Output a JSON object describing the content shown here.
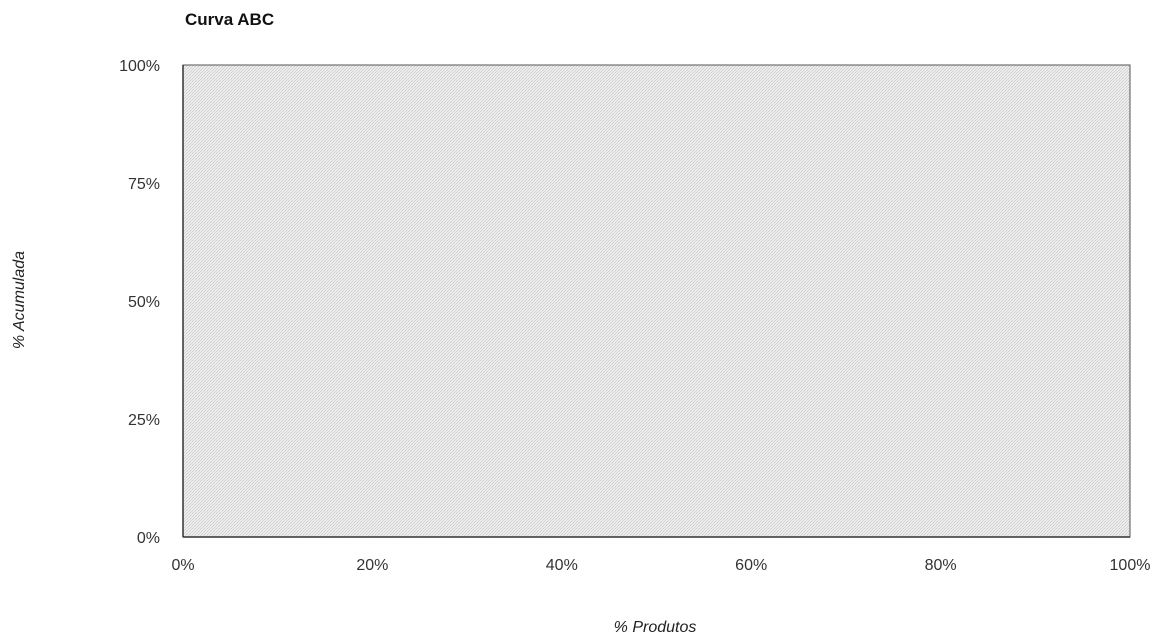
{
  "chart_data": {
    "type": "line",
    "title": "Curva ABC",
    "xlabel": "% Produtos",
    "ylabel": "% Acumulada",
    "xlim": [
      0,
      100
    ],
    "ylim": [
      0,
      100
    ],
    "x_ticks": [
      0,
      20,
      40,
      60,
      80,
      100
    ],
    "x_tick_labels": [
      "0%",
      "20%",
      "40%",
      "60%",
      "80%",
      "100%"
    ],
    "y_ticks": [
      0,
      25,
      50,
      75,
      100
    ],
    "y_tick_labels": [
      "0%",
      "25%",
      "50%",
      "75%",
      "100%"
    ],
    "grid": false,
    "plot_area_color": "#e6e6e6",
    "series": []
  }
}
